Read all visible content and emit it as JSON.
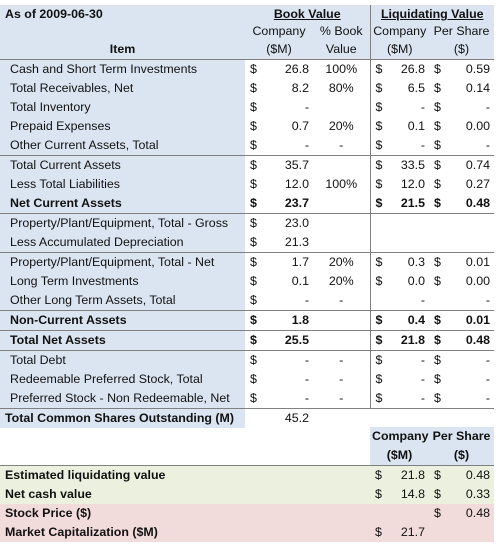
{
  "header": {
    "as_of": "As of 2009-06-30",
    "book_value": "Book Value",
    "liquidating_value": "Liquidating Value",
    "company": "Company",
    "pct_book": "% Book",
    "company2": "Company",
    "per_share": "Per Share",
    "item": "Item",
    "sm": "($M)",
    "value": "Value",
    "sm2": "($M)",
    "dollar": "($)"
  },
  "rows": [
    {
      "item": "Cash and Short Term Investments",
      "bc": "$",
      "bv": "26.8",
      "pct": "100%",
      "lc": "$",
      "lv": "26.8",
      "pc": "$",
      "pv": "0.59"
    },
    {
      "item": "Total Receivables, Net",
      "bc": "$",
      "bv": "8.2",
      "pct": "80%",
      "lc": "$",
      "lv": "6.5",
      "pc": "$",
      "pv": "0.14"
    },
    {
      "item": "Total Inventory",
      "bc": "$",
      "bv": "-",
      "pct": "",
      "lc": "$",
      "lv": "-",
      "pc": "$",
      "pv": "-"
    },
    {
      "item": "Prepaid Expenses",
      "bc": "$",
      "bv": "0.7",
      "pct": "20%",
      "lc": "$",
      "lv": "0.1",
      "pc": "$",
      "pv": "0.00"
    },
    {
      "item": "Other Current Assets, Total",
      "bc": "$",
      "bv": "-",
      "pct": "-",
      "lc": "$",
      "lv": "-",
      "pc": "$",
      "pv": "-"
    },
    {
      "item": "Total Current Assets",
      "bc": "$",
      "bv": "35.7",
      "pct": "",
      "lc": "$",
      "lv": "33.5",
      "pc": "$",
      "pv": "0.74"
    },
    {
      "item": "Less Total Liabilities",
      "bc": "$",
      "bv": "12.0",
      "pct": "100%",
      "lc": "$",
      "lv": "12.0",
      "pc": "$",
      "pv": "0.27"
    },
    {
      "item": "Net Current Assets",
      "bc": "$",
      "bv": "23.7",
      "pct": "",
      "lc": "$",
      "lv": "21.5",
      "pc": "$",
      "pv": "0.48"
    },
    {
      "item": "Property/Plant/Equipment, Total - Gross",
      "bc": "$",
      "bv": "23.0",
      "pct": "",
      "lc": "",
      "lv": "",
      "pc": "",
      "pv": ""
    },
    {
      "item": "Less Accumulated Depreciation",
      "bc": "$",
      "bv": "21.3",
      "pct": "",
      "lc": "",
      "lv": "",
      "pc": "",
      "pv": ""
    },
    {
      "item": "Property/Plant/Equipment, Total - Net",
      "bc": "$",
      "bv": "1.7",
      "pct": "20%",
      "lc": "$",
      "lv": "0.3",
      "pc": "$",
      "pv": "0.01"
    },
    {
      "item": "Long Term Investments",
      "bc": "$",
      "bv": "0.1",
      "pct": "20%",
      "lc": "$",
      "lv": "0.0",
      "pc": "$",
      "pv": "0.00"
    },
    {
      "item": "Other Long Term Assets, Total",
      "bc": "$",
      "bv": "-",
      "pct": "-",
      "lc": "",
      "lv": "-",
      "pc": "",
      "pv": "-"
    },
    {
      "item": "Non-Current Assets",
      "bc": "$",
      "bv": "1.8",
      "pct": "",
      "lc": "$",
      "lv": "0.4",
      "pc": "$",
      "pv": "0.01"
    },
    {
      "item": "Total Net Assets",
      "bc": "$",
      "bv": "25.5",
      "pct": "",
      "lc": "$",
      "lv": "21.8",
      "pc": "$",
      "pv": "0.48"
    },
    {
      "item": "Total Debt",
      "bc": "$",
      "bv": "-",
      "pct": "-",
      "lc": "$",
      "lv": "-",
      "pc": "$",
      "pv": "-"
    },
    {
      "item": "Redeemable Preferred Stock, Total",
      "bc": "$",
      "bv": "-",
      "pct": "-",
      "lc": "$",
      "lv": "-",
      "pc": "$",
      "pv": "-"
    },
    {
      "item": "Preferred Stock - Non Redeemable, Net",
      "bc": "$",
      "bv": "-",
      "pct": "-",
      "lc": "$",
      "lv": "-",
      "pc": "$",
      "pv": "-"
    }
  ],
  "shares": {
    "label": "Total Common Shares Outstanding (M)",
    "value": "45.2"
  },
  "summary_header": {
    "company": "Company",
    "per_share": "Per Share",
    "sm": "($M)",
    "dollar": "($)"
  },
  "summary": [
    {
      "label": "Estimated liquidating value",
      "cc": "$",
      "cv": "21.8",
      "pc": "$",
      "pv": "0.48"
    },
    {
      "label": "Net cash value",
      "cc": "$",
      "cv": "14.8",
      "pc": "$",
      "pv": "0.33"
    },
    {
      "label": "Stock Price ($)",
      "cc": "",
      "cv": "",
      "pc": "$",
      "pv": "0.48"
    },
    {
      "label": "Market Capitalization ($M)",
      "cc": "$",
      "cv": "21.7",
      "pc": "",
      "pv": ""
    }
  ]
}
